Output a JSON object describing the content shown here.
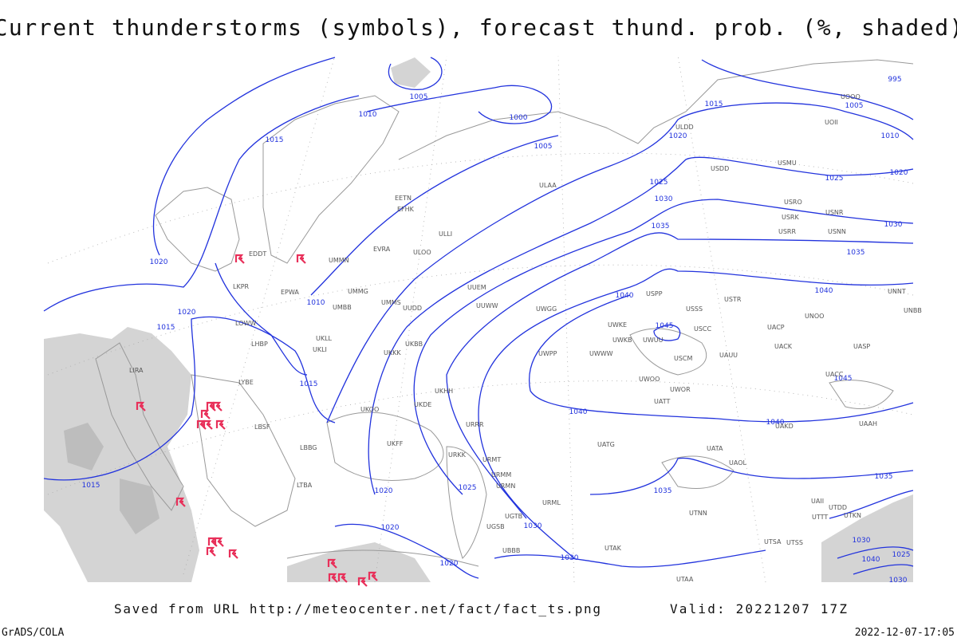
{
  "header": {
    "title": "Current thunderstorms (symbols), forecast thund. prob. (%, shaded)"
  },
  "footer": {
    "source": "Saved from URL http://meteocenter.net/fact/fact_ts.png",
    "valid": "Valid: 20221207 17Z",
    "software": "GrADS/COLA",
    "timestamp": "2022-12-07-17:05"
  },
  "map": {
    "contour_labels": [
      "1005",
      "1010",
      "1000",
      "1005",
      "1015",
      "1015",
      "1020",
      "1025",
      "1030",
      "1035",
      "1020",
      "1020",
      "1015",
      "1010",
      "1015",
      "1040",
      "1045",
      "1040",
      "1040",
      "1045",
      "1040",
      "1035",
      "1030",
      "1025",
      "1020",
      "1010",
      "1005",
      "995",
      "1015",
      "1020",
      "1025",
      "1020",
      "1020",
      "1030",
      "1030",
      "1035",
      "1035",
      "1030",
      "1025",
      "1040",
      "1030"
    ],
    "stations": [
      "EDDT",
      "UMMN",
      "EVRA",
      "ULOO",
      "ULLI",
      "EFHK",
      "EETN",
      "ULAA",
      "ULDD",
      "USDD",
      "USMU",
      "UOOO",
      "UOII",
      "USRO",
      "USRK",
      "USNR",
      "USRR",
      "USNN",
      "USTR",
      "USSS",
      "USCC",
      "USPP",
      "UWWW",
      "UWKE",
      "UWKB",
      "UWUU",
      "UWPP",
      "UWGG",
      "UUWW",
      "UUEM",
      "UUDD",
      "UMMS",
      "UMMG",
      "UMBB",
      "UKLL",
      "UKLI",
      "UKKK",
      "UKBB",
      "UKOO",
      "UKDE",
      "UKHH",
      "UKFF",
      "URRR",
      "URKK",
      "URMT",
      "URMM",
      "URMN",
      "URML",
      "UGTB",
      "UGSB",
      "UBBB",
      "UTAK",
      "UATG",
      "UATA",
      "UAOL",
      "UACC",
      "UASP",
      "UAUU",
      "UATT",
      "UWOO",
      "UWOR",
      "LIRA",
      "LYBE",
      "LBSF",
      "LBBG",
      "LTBA",
      "LKPR",
      "EPWA",
      "LOWW",
      "LHBP",
      "UTAA",
      "UTNN",
      "UTSA",
      "UTSS",
      "UTDD",
      "UAII",
      "UTTT",
      "UTKN",
      "UAAH",
      "UAKD",
      "UNNT",
      "UNBB",
      "UNOO",
      "UACK",
      "UACP",
      "USCM"
    ]
  }
}
